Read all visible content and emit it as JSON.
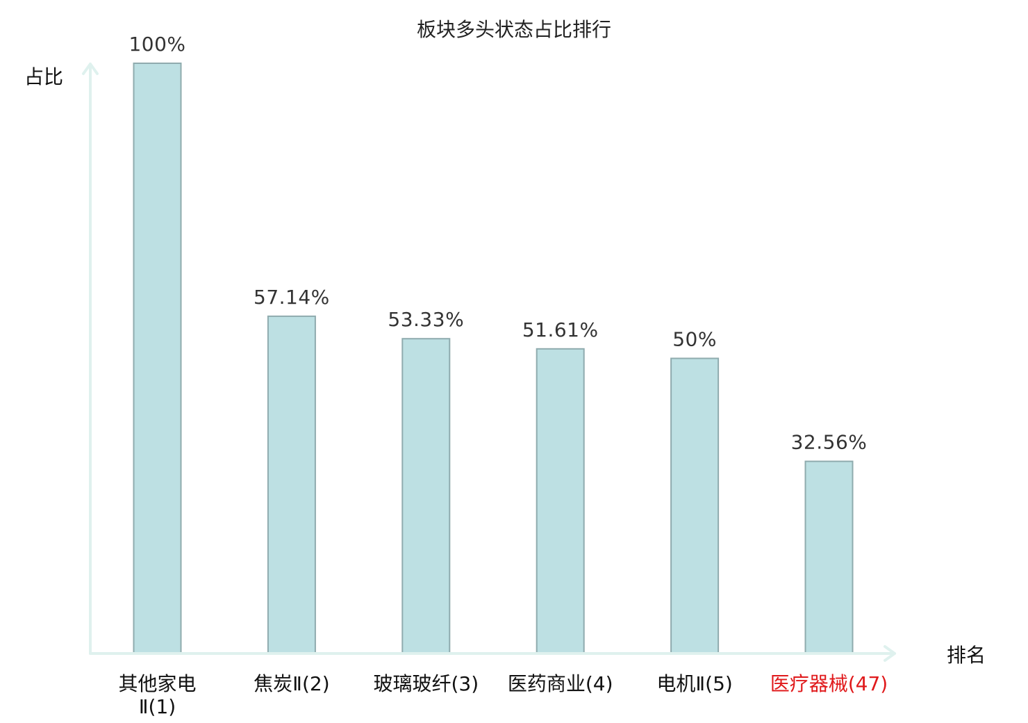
{
  "chart_data": {
    "type": "bar",
    "title": "板块多头状态占比排行",
    "ylabel": "占比",
    "xlabel": "排名",
    "ylim": [
      0,
      100
    ],
    "grid": false,
    "legend": "none",
    "bar_color": "#bde0e3",
    "bar_edge_color": "#8fabae",
    "axis_color": "#dff1ee",
    "highlight_color": "#e0191b",
    "categories": [
      {
        "lines": [
          "其他家电",
          "Ⅱ(1)"
        ],
        "highlight": false
      },
      {
        "lines": [
          "焦炭Ⅱ(2)"
        ],
        "highlight": false
      },
      {
        "lines": [
          "玻璃玻纤(3)"
        ],
        "highlight": false
      },
      {
        "lines": [
          "医药商业(4)"
        ],
        "highlight": false
      },
      {
        "lines": [
          "电机Ⅱ(5)"
        ],
        "highlight": false
      },
      {
        "lines": [
          "医疗器械(47)"
        ],
        "highlight": true
      }
    ],
    "values": [
      100,
      57.14,
      53.33,
      51.61,
      50,
      32.56
    ],
    "value_labels": [
      "100%",
      "57.14%",
      "53.33%",
      "51.61%",
      "50%",
      "32.56%"
    ]
  }
}
